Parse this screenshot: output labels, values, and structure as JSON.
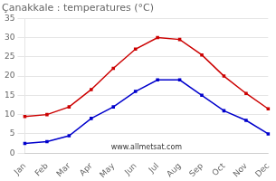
{
  "chart_data": {
    "type": "line",
    "title": "Çanakkale : temperatures (°C)",
    "categories": [
      "Jan",
      "Feb",
      "Mar",
      "Apr",
      "May",
      "Jun",
      "Jul",
      "Aug",
      "Sep",
      "Oct",
      "Nov",
      "Dec"
    ],
    "series": [
      {
        "color": "#cc0000",
        "values": [
          9.5,
          10.0,
          12.0,
          16.5,
          22.0,
          27.0,
          30.0,
          29.5,
          25.5,
          20.0,
          15.5,
          11.5
        ]
      },
      {
        "color": "#0000cc",
        "values": [
          2.5,
          3.0,
          4.5,
          9.0,
          12.0,
          16.0,
          19.0,
          19.0,
          15.0,
          11.0,
          8.5,
          5.0
        ]
      }
    ],
    "marker": "square",
    "ylim": [
      0,
      35
    ],
    "yticks": [
      0,
      5,
      10,
      15,
      20,
      25,
      30,
      35
    ],
    "grid": true,
    "annotation": "www.allmetsat.com"
  }
}
